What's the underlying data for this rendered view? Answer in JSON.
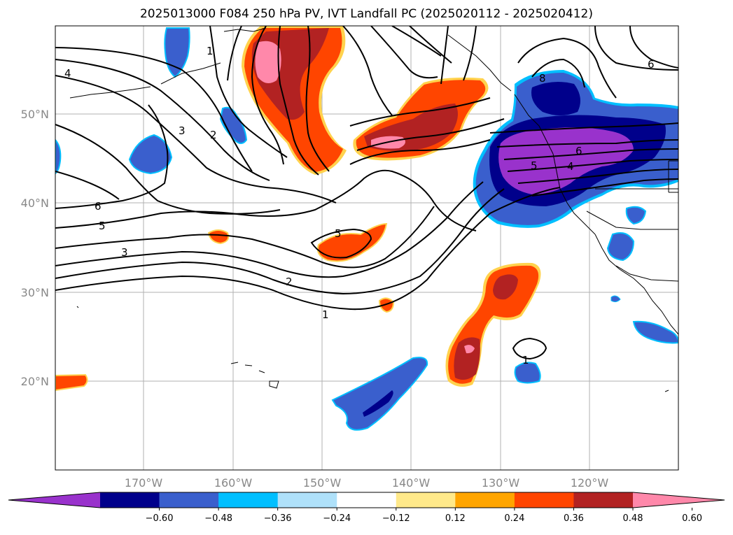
{
  "title": "2025013000 F084 250 hPa PV, IVT Landfall PC (2025020112 - 2025020412)",
  "axes": {
    "lat_labels": [
      "50°N",
      "40°N",
      "30°N",
      "20°N"
    ],
    "lon_labels": [
      "170°W",
      "160°W",
      "150°W",
      "140°W",
      "130°W",
      "120°W"
    ]
  },
  "contour_labels": [
    "4",
    "3",
    "2",
    "6",
    "5",
    "3",
    "2",
    "1",
    "5",
    "1",
    "8",
    "6",
    "5",
    "4",
    "6",
    "1"
  ],
  "colorbar": {
    "ticks": [
      "−0.60",
      "−0.48",
      "−0.36",
      "−0.24",
      "−0.12",
      "0.12",
      "0.24",
      "0.36",
      "0.48",
      "0.60"
    ],
    "colors": [
      "#9932cc",
      "#00008b",
      "#3a5fcd",
      "#00bfff",
      "#afe1fa",
      "#ffffff",
      "#ffe98a",
      "#ffa500",
      "#ff4500",
      "#b22222",
      "#ff88aa"
    ]
  }
}
